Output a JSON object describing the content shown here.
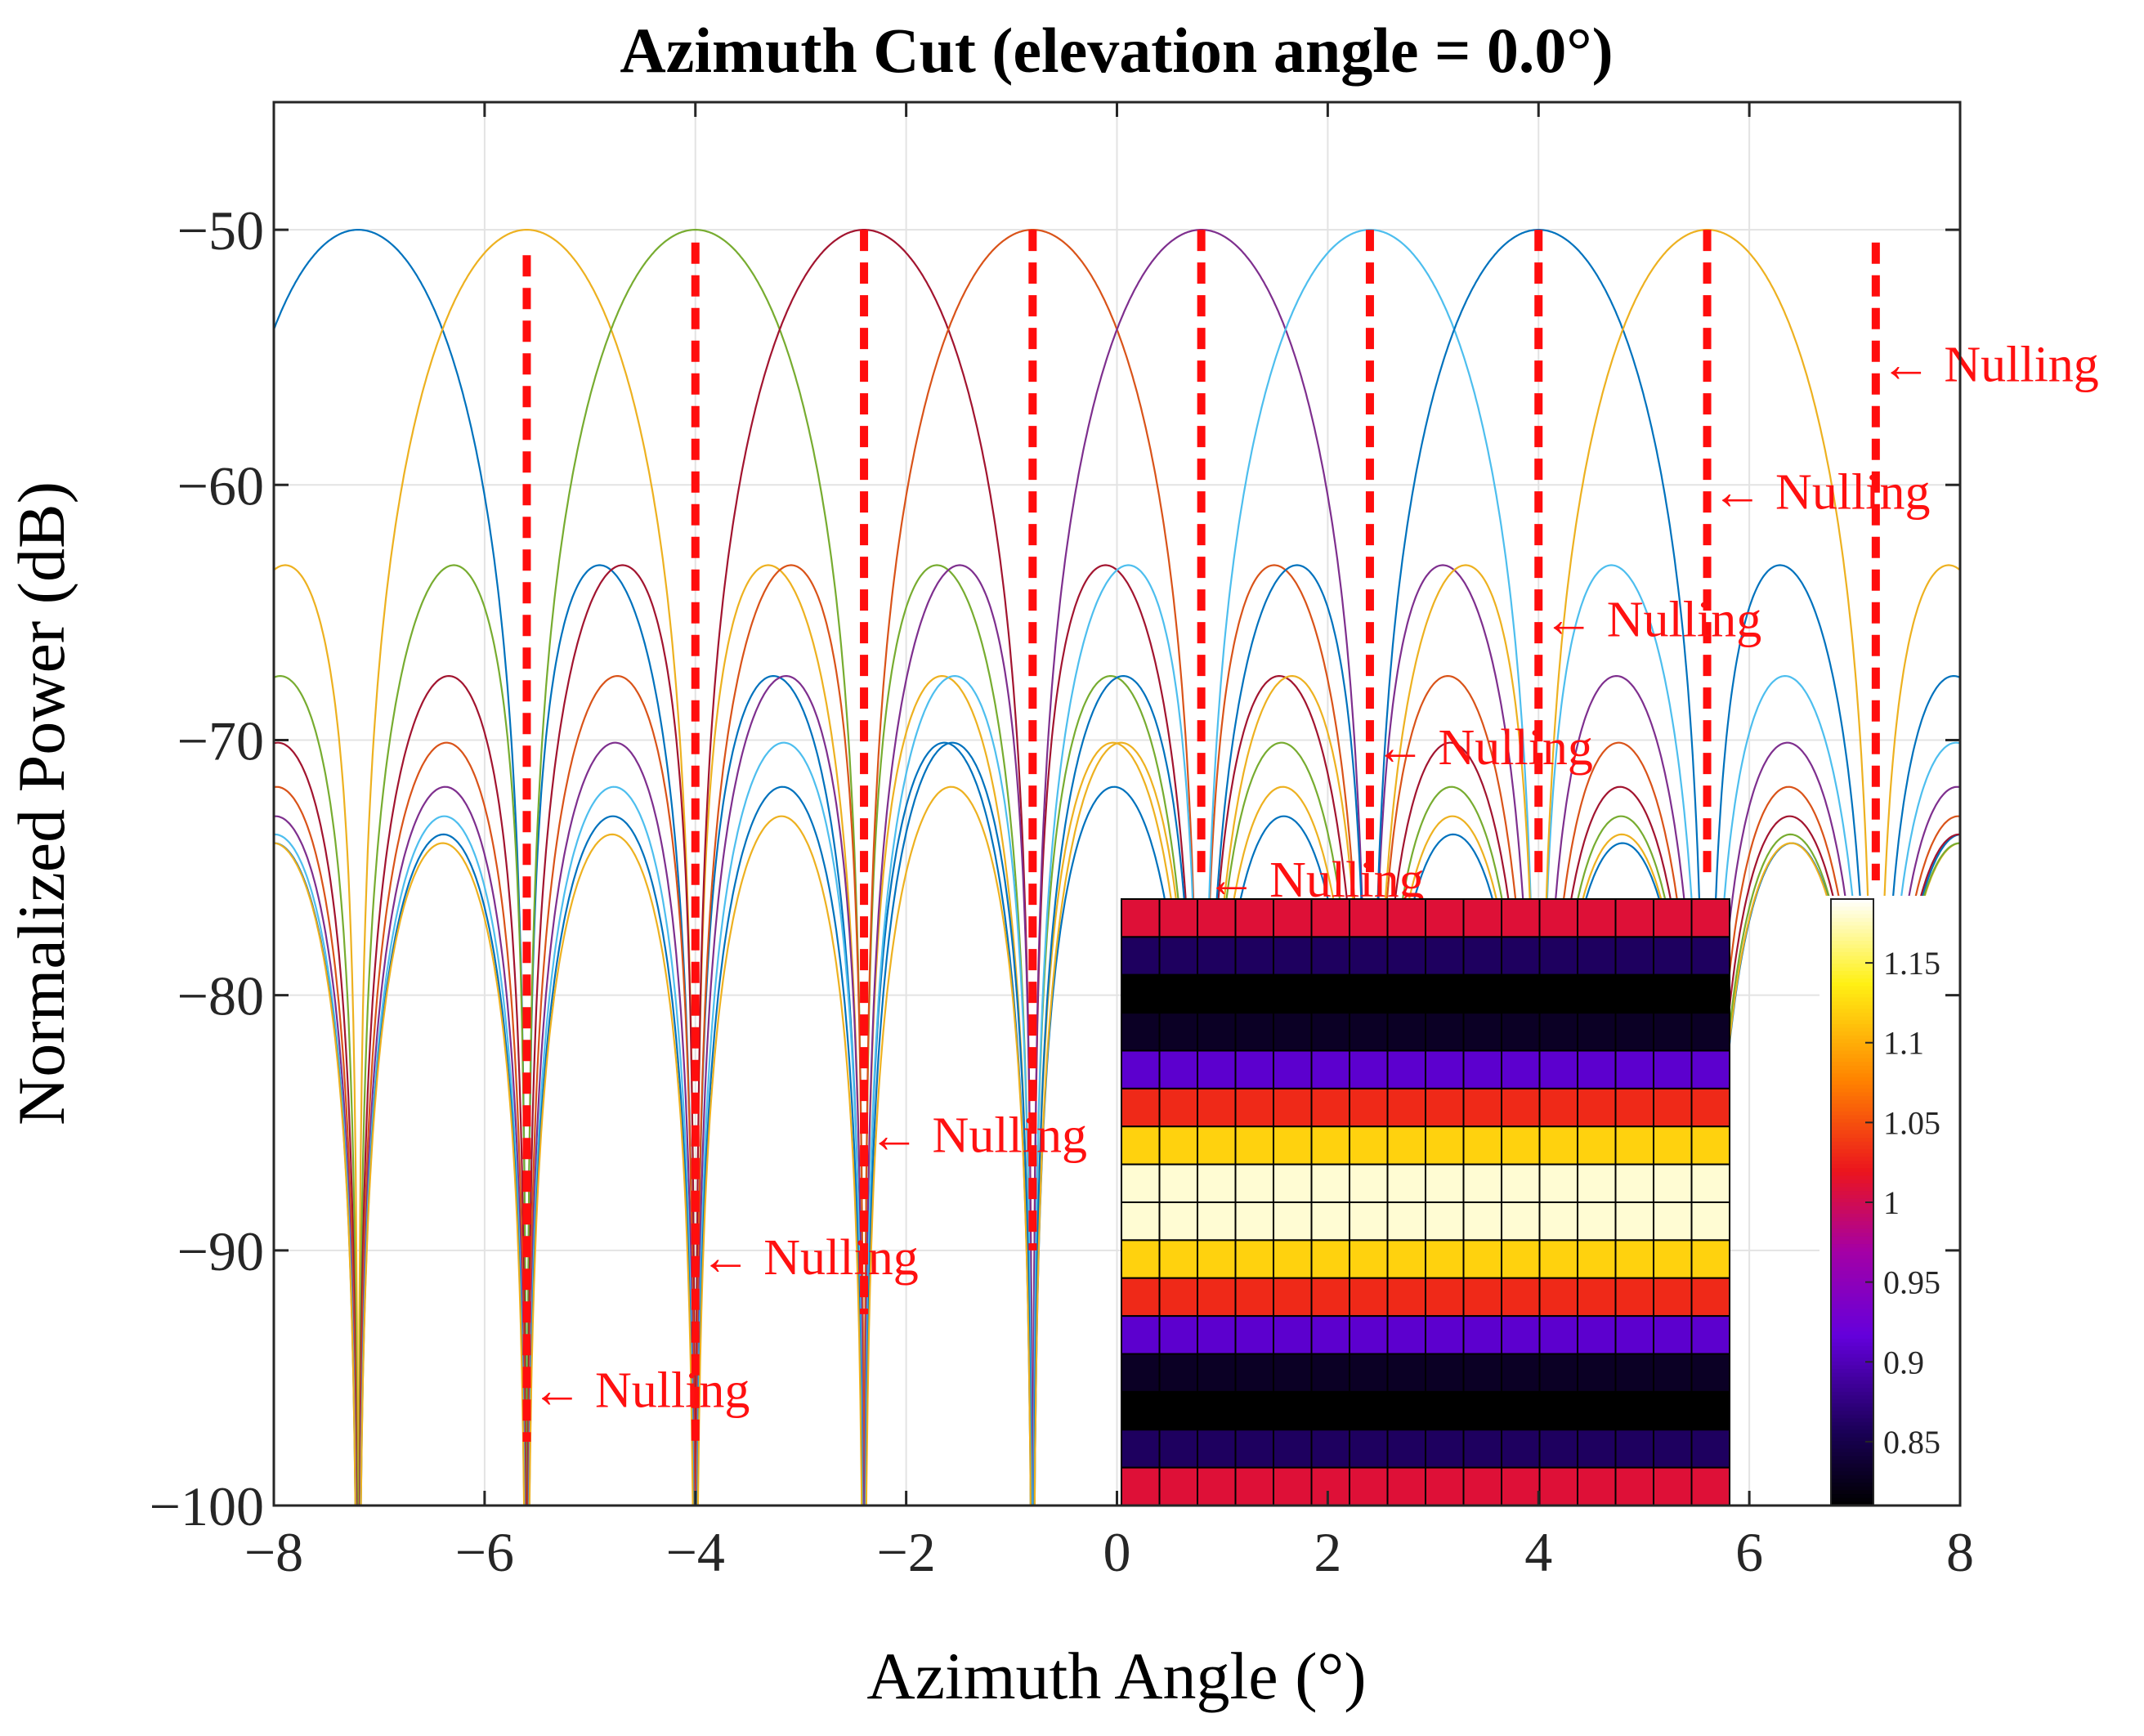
{
  "chart_data": {
    "type": "line",
    "title": "Azimuth Cut (elevation angle = 0.0°)",
    "xlabel": "Azimuth Angle (°)",
    "ylabel": "Normalized Power (dB)",
    "xlim": [
      -8,
      8
    ],
    "ylim": [
      -100,
      -45
    ],
    "xticks": [
      -8,
      -6,
      -4,
      -2,
      0,
      2,
      4,
      6,
      8
    ],
    "xtick_labels": [
      "−8",
      "−6",
      "−4",
      "−2",
      "0",
      "2",
      "4",
      "6",
      "8"
    ],
    "yticks": [
      -100,
      -90,
      -80,
      -70,
      -60,
      -50
    ],
    "ytick_labels": [
      "−100",
      "−90",
      "−80",
      "−70",
      "−60",
      "−50"
    ],
    "grid": true,
    "series": [
      {
        "peak_angle": -7.2,
        "peak_db": -50,
        "color": "#0072BD"
      },
      {
        "peak_angle": -5.6,
        "peak_db": -50,
        "color": "#EDB120"
      },
      {
        "peak_angle": -4.0,
        "peak_db": -50,
        "color": "#77AC30"
      },
      {
        "peak_angle": -2.4,
        "peak_db": -50,
        "color": "#A2142F"
      },
      {
        "peak_angle": -0.8,
        "peak_db": -50,
        "color": "#D95319"
      },
      {
        "peak_angle": 0.8,
        "peak_db": -50,
        "color": "#7E2F8E"
      },
      {
        "peak_angle": 2.4,
        "peak_db": -50,
        "color": "#4DBEEE"
      },
      {
        "peak_angle": 4.0,
        "peak_db": -50,
        "color": "#0072BD"
      },
      {
        "peak_angle": 5.6,
        "peak_db": -50,
        "color": "#EDB120"
      }
    ],
    "nulling_lines": [
      {
        "x": -5.6,
        "y_top": -51,
        "y_bottom": -97.5
      },
      {
        "x": -4.0,
        "y_top": -50.5,
        "y_bottom": -97.5
      },
      {
        "x": -2.4,
        "y_top": -50,
        "y_bottom": -92.5
      },
      {
        "x": -0.8,
        "y_top": -50,
        "y_bottom": -90
      },
      {
        "x": 0.8,
        "y_top": -50,
        "y_bottom": -75.5
      },
      {
        "x": 2.4,
        "y_top": -50,
        "y_bottom": -75.5
      },
      {
        "x": 4.0,
        "y_top": -50,
        "y_bottom": -75.5
      },
      {
        "x": 5.6,
        "y_top": -50,
        "y_bottom": -75.5
      },
      {
        "x": 7.2,
        "y_top": -50.5,
        "y_bottom": -75.5
      }
    ],
    "annotations": [
      {
        "text": "Nulling",
        "x": -5.6,
        "y": -95.5
      },
      {
        "text": "Nulling",
        "x": -4.0,
        "y": -90.3
      },
      {
        "text": "Nulling",
        "x": -2.4,
        "y": -85.5
      },
      {
        "text": "Nulling",
        "x": 0.8,
        "y": -75.5
      },
      {
        "text": "Nulling",
        "x": 2.4,
        "y": -70.3
      },
      {
        "text": "Nulling",
        "x": 4.0,
        "y": -65.3
      },
      {
        "text": "Nulling",
        "x": 5.6,
        "y": -60.3
      },
      {
        "text": "Nulling",
        "x": 7.2,
        "y": -55.3
      }
    ],
    "inset_heatmap": {
      "row_values": [
        1.01,
        0.86,
        0.81,
        0.83,
        0.91,
        1.03,
        1.12,
        1.18,
        1.18,
        1.12,
        1.03,
        0.91,
        0.83,
        0.81,
        0.86,
        1.01
      ],
      "columns": 16
    },
    "colorbar": {
      "range": [
        0.81,
        1.19
      ],
      "ticks": [
        0.85,
        0.9,
        0.95,
        1,
        1.05,
        1.1,
        1.15
      ],
      "tick_labels": [
        "0.85",
        "0.9",
        "0.95",
        "1",
        "1.05",
        "1.1",
        "1.15"
      ]
    }
  }
}
